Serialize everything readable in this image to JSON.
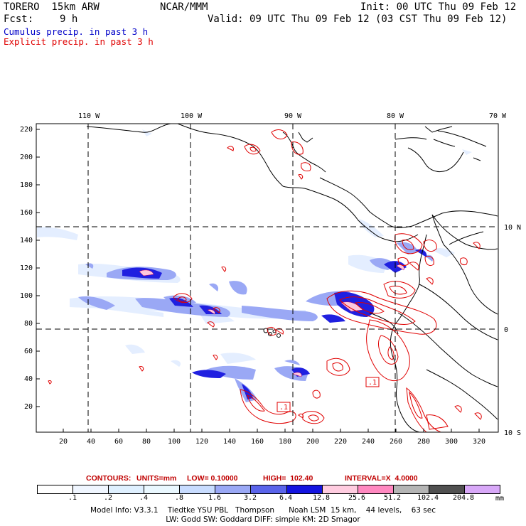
{
  "header": {
    "model": "TORERO  15km ARW",
    "org": "NCAR/MMM",
    "init": "Init: 00 UTC Thu 09 Feb 12",
    "fcst_label": "Fcst:",
    "fcst_value": "9 h",
    "valid": "Valid: 09 UTC Thu 09 Feb 12 (03 CST Thu 09 Feb 12)",
    "cumulus": "Cumulus precip. in past 3 h",
    "explicit": "Explicit precip. in past 3 h"
  },
  "colors": {
    "cumulus_text": "#0000c8",
    "explicit_text": "#e00000",
    "coast": "#000000",
    "contour": "#e00000"
  },
  "map": {
    "lon_labels": [
      "110 W",
      "100 W",
      "90 W",
      "80 W",
      "70 W"
    ],
    "lat_labels": [
      "10 N",
      "0",
      "10 S"
    ],
    "y_ticks": [
      "220",
      "200",
      "180",
      "160",
      "140",
      "120",
      "100",
      "80",
      "60",
      "40",
      "20"
    ],
    "x_ticks": [
      "20",
      "40",
      "60",
      "80",
      "100",
      "120",
      "140",
      "160",
      "180",
      "200",
      "220",
      "240",
      "260",
      "280",
      "300",
      "320"
    ],
    "contour_box_labels": [
      ".1",
      ".1"
    ]
  },
  "contours_line": {
    "title": "CONTOURS:",
    "units": "UNITS=mm",
    "low": "LOW= 0.10000",
    "high": "HIGH=  102.40",
    "interval": "INTERVAL=X  4.0000"
  },
  "colorbar": {
    "labels": [
      ".1",
      ".2",
      ".4",
      ".8",
      "1.6",
      "3.2",
      "6.4",
      "12.8",
      "25.6",
      "51.2",
      "102.4",
      "204.8"
    ],
    "unit": "mm",
    "colors": [
      "#ffffff",
      "#f0f6ff",
      "#dff0ff",
      "#eaf8ff",
      "#c8dcff",
      "#9aa8f5",
      "#5a64ea",
      "#1414e0",
      "#ffcce0",
      "#ff88c0",
      "#b4b4b4",
      "#505050",
      "#d8a8f8"
    ]
  },
  "footer": {
    "line1": "Model Info: V3.3.1    Tiedtke YSU PBL   Thompson      Noah LSM  15 km,    44 levels,    63 sec",
    "line2": "LW: Godd SW: Goddard DIFF: simple KM: 2D Smagor"
  }
}
